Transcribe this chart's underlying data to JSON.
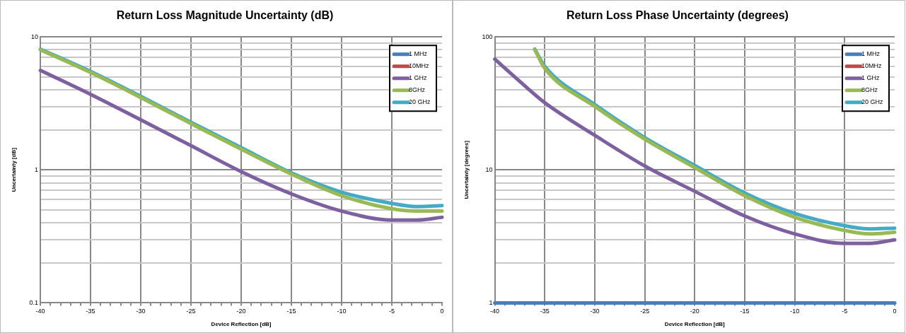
{
  "chart_data": [
    {
      "type": "line",
      "title": "Return Loss Magnitude Uncertainty (dB)",
      "xlabel": "Device Reflection [dB]",
      "ylabel": "Uncertainty [dB]",
      "log": "y",
      "grid": true,
      "legend": "top right",
      "marker": "none",
      "line_style": "solid",
      "xlim": [
        -40,
        0
      ],
      "xticks": [
        -40,
        {
          "value": -39,
          "label": null
        },
        {
          "value": -38,
          "label": null
        },
        {
          "value": -37,
          "label": null
        },
        {
          "value": -36,
          "label": null
        },
        -35,
        {
          "value": -34,
          "label": null
        },
        {
          "value": -33,
          "label": null
        },
        {
          "value": -32,
          "label": null
        },
        {
          "value": -31,
          "label": null
        },
        -30,
        {
          "value": -29,
          "label": null
        },
        {
          "value": -28,
          "label": null
        },
        {
          "value": -27,
          "label": null
        },
        {
          "value": -26,
          "label": null
        },
        -25,
        {
          "value": -24,
          "label": null
        },
        {
          "value": -23,
          "label": null
        },
        {
          "value": -22,
          "label": null
        },
        {
          "value": -21,
          "label": null
        },
        -20,
        {
          "value": -19,
          "label": null
        },
        {
          "value": -18,
          "label": null
        },
        {
          "value": -17,
          "label": null
        },
        {
          "value": -16,
          "label": null
        },
        -15,
        {
          "value": -14,
          "label": null
        },
        {
          "value": -13,
          "label": null
        },
        {
          "value": -12,
          "label": null
        },
        {
          "value": -11,
          "label": null
        },
        -10,
        {
          "value": -9,
          "label": null
        },
        {
          "value": -8,
          "label": null
        },
        {
          "value": -7,
          "label": null
        },
        {
          "value": -6,
          "label": null
        },
        -5,
        {
          "value": -4,
          "label": null
        },
        {
          "value": -3,
          "label": null
        },
        {
          "value": -2,
          "label": null
        },
        {
          "value": -1,
          "label": null
        },
        0
      ],
      "ylim": [
        0.1,
        10
      ],
      "yticks": [
        0.1,
        {
          "value": 0.2,
          "label": null
        },
        {
          "value": 0.3,
          "label": null
        },
        {
          "value": 0.4,
          "label": null
        },
        {
          "value": 0.5,
          "label": null
        },
        {
          "value": 0.6,
          "label": null
        },
        {
          "value": 0.7,
          "label": null
        },
        {
          "value": 0.8,
          "label": null
        },
        {
          "value": 0.9,
          "label": null
        },
        1,
        {
          "value": 2,
          "label": null
        },
        {
          "value": 3,
          "label": null
        },
        {
          "value": 4,
          "label": null
        },
        {
          "value": 5,
          "label": null
        },
        {
          "value": 6,
          "label": null
        },
        {
          "value": 7,
          "label": null
        },
        {
          "value": 8,
          "label": null
        },
        {
          "value": 9,
          "label": null
        },
        10
      ],
      "series": [
        {
          "name": "1 MHz",
          "color": "#4a7ebb"
        },
        {
          "name": "10MHz",
          "color": "#be4b48"
        },
        {
          "name": "1 GHz",
          "color": "#7d60a0",
          "x": [
            -40,
            -35,
            -30,
            -25,
            -20,
            -15,
            -10,
            -5,
            -2.5,
            0
          ],
          "values": [
            5.6,
            3.7,
            2.38,
            1.52,
            0.97,
            0.66,
            0.49,
            0.42,
            0.42,
            0.44
          ]
        },
        {
          "name": "8GHz",
          "color": "#98b954",
          "x": [
            -40,
            -35,
            -30,
            -25,
            -20,
            -15,
            -10,
            -5,
            -2.5,
            0
          ],
          "values": [
            8.0,
            5.4,
            3.5,
            2.23,
            1.43,
            0.93,
            0.64,
            0.51,
            0.49,
            0.49
          ]
        },
        {
          "name": "20 GHz",
          "color": "#46aac5",
          "x": [
            -40,
            -35,
            -30,
            -25,
            -20,
            -15,
            -10,
            -5,
            -2.5,
            0
          ],
          "values": [
            8.1,
            5.5,
            3.57,
            2.28,
            1.47,
            0.95,
            0.68,
            0.56,
            0.53,
            0.54
          ]
        }
      ]
    },
    {
      "type": "line",
      "title": "Return Loss Phase Uncertainty (degrees)",
      "xlabel": "Device Reflection [dB]",
      "ylabel": "Uncertainty [degrees]",
      "log": "y",
      "grid": true,
      "legend": "top right",
      "marker": "none",
      "line_style": "solid",
      "xlim": [
        -40,
        0
      ],
      "xticks": [
        -40,
        {
          "value": -39,
          "label": null
        },
        {
          "value": -38,
          "label": null
        },
        {
          "value": -37,
          "label": null
        },
        {
          "value": -36,
          "label": null
        },
        -35,
        {
          "value": -34,
          "label": null
        },
        {
          "value": -33,
          "label": null
        },
        {
          "value": -32,
          "label": null
        },
        {
          "value": -31,
          "label": null
        },
        -30,
        {
          "value": -29,
          "label": null
        },
        {
          "value": -28,
          "label": null
        },
        {
          "value": -27,
          "label": null
        },
        {
          "value": -26,
          "label": null
        },
        -25,
        {
          "value": -24,
          "label": null
        },
        {
          "value": -23,
          "label": null
        },
        {
          "value": -22,
          "label": null
        },
        {
          "value": -21,
          "label": null
        },
        -20,
        {
          "value": -19,
          "label": null
        },
        {
          "value": -18,
          "label": null
        },
        {
          "value": -17,
          "label": null
        },
        {
          "value": -16,
          "label": null
        },
        -15,
        {
          "value": -14,
          "label": null
        },
        {
          "value": -13,
          "label": null
        },
        {
          "value": -12,
          "label": null
        },
        {
          "value": -11,
          "label": null
        },
        -10,
        {
          "value": -9,
          "label": null
        },
        {
          "value": -8,
          "label": null
        },
        {
          "value": -7,
          "label": null
        },
        {
          "value": -6,
          "label": null
        },
        -5,
        {
          "value": -4,
          "label": null
        },
        {
          "value": -3,
          "label": null
        },
        {
          "value": -2,
          "label": null
        },
        {
          "value": -1,
          "label": null
        },
        0
      ],
      "ylim": [
        1,
        100
      ],
      "yticks": [
        1,
        {
          "value": 2,
          "label": null
        },
        {
          "value": 3,
          "label": null
        },
        {
          "value": 4,
          "label": null
        },
        {
          "value": 5,
          "label": null
        },
        {
          "value": 6,
          "label": null
        },
        {
          "value": 7,
          "label": null
        },
        {
          "value": 8,
          "label": null
        },
        {
          "value": 9,
          "label": null
        },
        10,
        {
          "value": 20,
          "label": null
        },
        {
          "value": 30,
          "label": null
        },
        {
          "value": 40,
          "label": null
        },
        {
          "value": 50,
          "label": null
        },
        {
          "value": 60,
          "label": null
        },
        {
          "value": 70,
          "label": null
        },
        {
          "value": 80,
          "label": null
        },
        {
          "value": 90,
          "label": null
        },
        100
      ],
      "series": [
        {
          "name": "1 MHz",
          "color": "#4a7ebb",
          "x": [
            -40,
            0
          ],
          "values": [
            1,
            1
          ]
        },
        {
          "name": "10MHz",
          "color": "#be4b48"
        },
        {
          "name": "1 GHz",
          "color": "#7d60a0",
          "x": [
            -40,
            -38,
            -35,
            -30,
            -25,
            -20,
            -15,
            -10,
            -5,
            -2.5,
            0
          ],
          "values": [
            68,
            50,
            32,
            18.2,
            10.7,
            6.9,
            4.5,
            3.3,
            2.8,
            2.8,
            2.98
          ]
        },
        {
          "name": "8GHz",
          "color": "#98b954",
          "x": [
            -36,
            -35,
            -30,
            -25,
            -20,
            -15,
            -10,
            -5,
            -2.5,
            0
          ],
          "values": [
            80,
            58,
            30,
            17,
            10.4,
            6.4,
            4.4,
            3.5,
            3.3,
            3.4
          ]
        },
        {
          "name": "20 GHz",
          "color": "#46aac5",
          "x": [
            -36,
            -35,
            -30,
            -25,
            -20,
            -15,
            -10,
            -5,
            -2.5,
            0
          ],
          "values": [
            81,
            60,
            31,
            17.5,
            10.8,
            6.7,
            4.7,
            3.8,
            3.6,
            3.65
          ]
        }
      ]
    }
  ]
}
